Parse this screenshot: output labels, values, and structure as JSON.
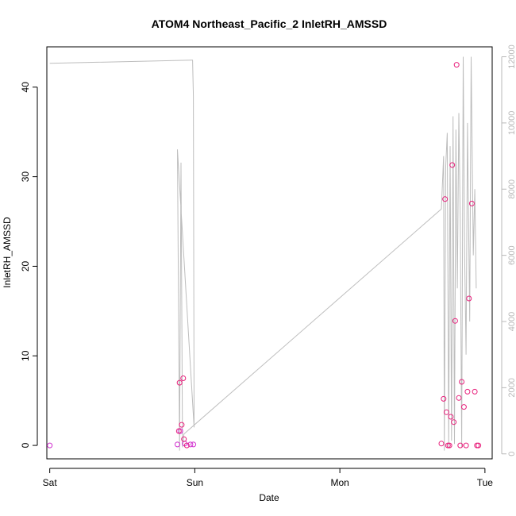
{
  "chart_data": {
    "type": "scatter",
    "title": "ATOM4 Northeast_Pacific_2 InletRH_AMSSD",
    "xlabel": "Date",
    "ylabel": "InletRH_AMSSD",
    "xlim": [
      -0.02,
      3.05
    ],
    "ylim": [
      -1.5,
      44.5
    ],
    "x_tick_values": [
      0,
      1,
      2,
      3
    ],
    "x_tick_labels": [
      "Sat",
      "Sun",
      "Mon",
      "Tue"
    ],
    "y_ticks": [
      0,
      10,
      20,
      30,
      40
    ],
    "y2_ticks": [
      0,
      2000,
      4000,
      6000,
      8000,
      10000,
      12000
    ],
    "y2lim": [
      -150,
      12300
    ],
    "colors": {
      "point_magenta": "#d12fcf",
      "point_pink": "#e8207c",
      "line": "#bdbdbd",
      "right_axis": "#b8b8b8"
    },
    "series": [
      {
        "axis": "left",
        "style": "points",
        "color": "#d12fcf",
        "x": [
          0.0,
          0.88,
          0.9,
          0.93,
          0.97,
          0.99
        ],
        "y": [
          0.0,
          0.1,
          1.6,
          0.2,
          0.1,
          0.1
        ]
      },
      {
        "axis": "left",
        "style": "points",
        "color": "#e8207c",
        "x": [
          0.89,
          0.895,
          0.91,
          0.92,
          0.925,
          0.945,
          2.7,
          2.715,
          2.725,
          2.735,
          2.745,
          2.755,
          2.765,
          2.775,
          2.785,
          2.795,
          2.805,
          2.82,
          2.83,
          2.84,
          2.855,
          2.87,
          2.88,
          2.89,
          2.91,
          2.93,
          2.945,
          2.955
        ],
        "y": [
          1.6,
          7.0,
          2.3,
          7.5,
          0.7,
          0.0,
          0.2,
          5.2,
          27.5,
          3.7,
          0.0,
          0.0,
          3.2,
          31.3,
          2.6,
          13.9,
          42.5,
          5.3,
          0.0,
          7.1,
          4.3,
          0.0,
          6.0,
          16.4,
          27.0,
          6.0,
          0.0,
          0.0
        ]
      },
      {
        "axis": "right",
        "style": "line",
        "color": "#bdbdbd",
        "x": [
          0.0,
          0.98,
          0.985,
          0.99,
          0.995,
          0.88,
          0.895,
          0.905,
          0.915,
          0.925,
          2.7,
          2.715,
          2.72,
          2.73,
          2.74,
          2.75,
          2.76,
          2.77,
          2.78,
          2.79,
          2.8,
          2.81,
          2.82,
          2.83,
          2.84,
          2.85,
          2.86,
          2.87,
          2.88,
          2.885,
          2.895,
          2.905,
          2.91,
          2.92,
          2.93,
          2.94
        ],
        "y": [
          11800,
          11900,
          11900,
          10800,
          800,
          9200,
          100,
          8800,
          200,
          600,
          7400,
          9000,
          100,
          8700,
          9700,
          200,
          9300,
          400,
          10200,
          300,
          9800,
          5000,
          10300,
          7000,
          200,
          12000,
          6000,
          3000,
          10000,
          8000,
          4000,
          12000,
          10000,
          6000,
          8000,
          5000
        ]
      }
    ]
  }
}
